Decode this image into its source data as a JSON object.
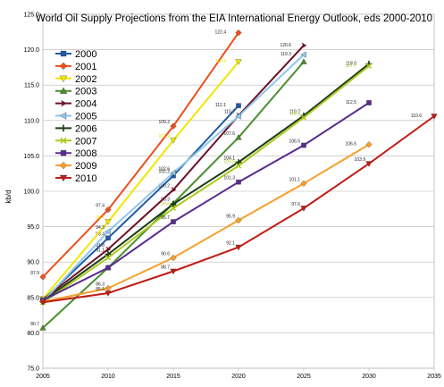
{
  "chart_data": {
    "type": "line",
    "title": "World Oil Supply Projections from the EIA International Energy Outlook, eds 2000-2010",
    "xlabel": "",
    "ylabel": "kb/d",
    "xlim": [
      2005,
      2035
    ],
    "ylim": [
      75.0,
      125.0
    ],
    "x_ticks": [
      "2005",
      "2010",
      "2015",
      "2020",
      "2025",
      "2030",
      "2035"
    ],
    "y_ticks": [
      "125.0",
      "120.0",
      "115.0",
      "110.0",
      "105.0",
      "100.0",
      "95.0",
      "90.0",
      "85.0",
      "80.0",
      "75.0"
    ],
    "grid": true,
    "legend_position": "top-left",
    "series": [
      {
        "name": "2000",
        "color": "#1f5aa6",
        "marker": "square",
        "points": [
          [
            2005,
            84.6
          ],
          [
            2010,
            93.4
          ],
          [
            2015,
            102.2
          ],
          [
            2020,
            112.1
          ]
        ],
        "labels": [
          "",
          "93.4",
          "102.2",
          "112.1"
        ]
      },
      {
        "name": "2001",
        "color": "#ee4f1c",
        "marker": "diamond",
        "points": [
          [
            2005,
            87.9
          ],
          [
            2010,
            97.4
          ],
          [
            2015,
            109.2
          ],
          [
            2020,
            122.4
          ]
        ],
        "labels": [
          "87.9",
          "97.4",
          "109.2",
          "122.4"
        ]
      },
      {
        "name": "2002",
        "color": "#f2e600",
        "marker": "triangle-down",
        "points": [
          [
            2005,
            84.8
          ],
          [
            2010,
            95.7
          ],
          [
            2015,
            107.2
          ],
          [
            2020,
            118.3
          ]
        ],
        "labels": [
          "",
          "95.7",
          "107.2",
          "118.3"
        ]
      },
      {
        "name": "2003",
        "color": "#4a8f2f",
        "marker": "triangle-up",
        "points": [
          [
            2005,
            80.7
          ],
          [
            2010,
            89.2
          ],
          [
            2015,
            98.3
          ],
          [
            2020,
            107.6
          ],
          [
            2025,
            118.3
          ]
        ],
        "labels": [
          "80.7",
          "",
          "98.3",
          "107.6",
          ""
        ]
      },
      {
        "name": "2004",
        "color": "#6b1028",
        "marker": "arrow",
        "points": [
          [
            2005,
            84.7
          ],
          [
            2010,
            91.8
          ],
          [
            2015,
            100.2
          ],
          [
            2020,
            110.7
          ],
          [
            2025,
            120.6
          ]
        ],
        "labels": [
          "",
          "91.8",
          "100.2",
          "110.7",
          "120.6"
        ]
      },
      {
        "name": "2005",
        "color": "#8fc7e8",
        "marker": "triangle-left",
        "points": [
          [
            2005,
            84.4
          ],
          [
            2010,
            94.3
          ],
          [
            2015,
            102.6
          ],
          [
            2020,
            110.6
          ],
          [
            2025,
            119.3
          ]
        ],
        "labels": [
          "",
          "94.3",
          "102.6",
          "",
          "119.3"
        ]
      },
      {
        "name": "2006",
        "color": "#1b3d14",
        "marker": "plus",
        "points": [
          [
            2005,
            84.5
          ],
          [
            2010,
            91.1
          ],
          [
            2015,
            98.2
          ],
          [
            2020,
            104.1
          ],
          [
            2025,
            110.7
          ],
          [
            2030,
            118.0
          ]
        ],
        "labels": [
          "",
          "91.1",
          "",
          "104.1",
          "110.7",
          "118.0"
        ]
      },
      {
        "name": "2007",
        "color": "#aec91f",
        "marker": "x",
        "points": [
          [
            2005,
            84.3
          ],
          [
            2010,
            90.6
          ],
          [
            2015,
            97.6
          ],
          [
            2020,
            103.6
          ],
          [
            2025,
            110.4
          ],
          [
            2030,
            117.7
          ]
        ],
        "labels": [
          "",
          "",
          "97.6",
          "103.6",
          "110.4",
          "117.7"
        ]
      },
      {
        "name": "2008",
        "color": "#5a2c8e",
        "marker": "square",
        "points": [
          [
            2005,
            84.6
          ],
          [
            2010,
            89.2
          ],
          [
            2015,
            95.7
          ],
          [
            2020,
            101.3
          ],
          [
            2025,
            106.5
          ],
          [
            2030,
            112.5
          ]
        ],
        "labels": [
          "",
          "",
          "95.7",
          "101.3",
          "106.5",
          "112.5"
        ]
      },
      {
        "name": "2009",
        "color": "#f6a02a",
        "marker": "diamond",
        "points": [
          [
            2005,
            84.4
          ],
          [
            2010,
            86.3
          ],
          [
            2015,
            90.6
          ],
          [
            2020,
            95.9
          ],
          [
            2025,
            101.1
          ],
          [
            2030,
            106.6
          ]
        ],
        "labels": [
          "",
          "86.3",
          "90.6",
          "95.9",
          "101.1",
          "106.6"
        ]
      },
      {
        "name": "2010",
        "color": "#c01c14",
        "marker": "triangle-down",
        "points": [
          [
            2005,
            84.3
          ],
          [
            2010,
            85.6
          ],
          [
            2015,
            88.7
          ],
          [
            2020,
            92.1
          ],
          [
            2025,
            97.6
          ],
          [
            2030,
            103.9
          ],
          [
            2035,
            110.6
          ]
        ],
        "labels": [
          "",
          "85.6",
          "88.7",
          "92.1",
          "97.6",
          "103.9",
          "110.6"
        ]
      }
    ]
  }
}
